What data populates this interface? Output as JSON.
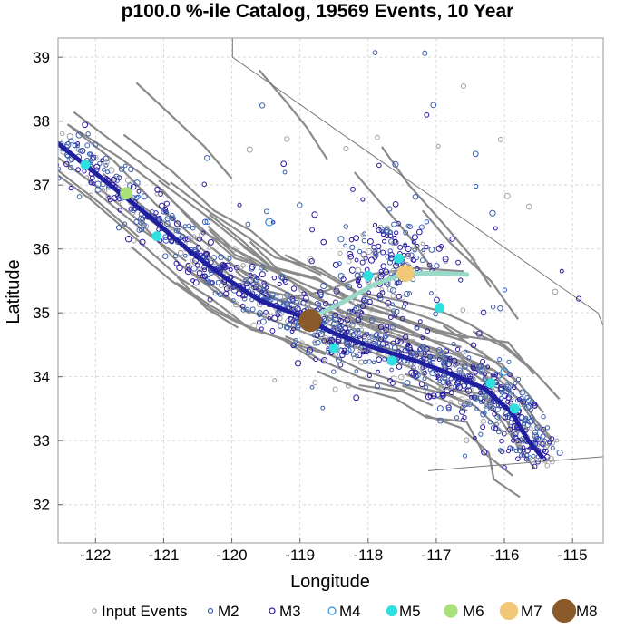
{
  "chart_data": {
    "type": "scatter",
    "title": "p100.0 %-ile Catalog, 19569 Events, 10 Year",
    "xlabel": "Longitude",
    "ylabel": "Latitude",
    "xlim": [
      -122.55,
      -114.55
    ],
    "ylim": [
      31.4,
      39.3
    ],
    "x_ticks": [
      -122,
      -121,
      -120,
      -119,
      -118,
      -117,
      -116,
      -115
    ],
    "y_ticks": [
      32,
      33,
      34,
      35,
      36,
      37,
      38,
      39
    ],
    "x_tick_labels": [
      "-122",
      "-121",
      "-120",
      "-119",
      "-118",
      "-117",
      "-116",
      "-115"
    ],
    "y_tick_labels": [
      "32",
      "33",
      "34",
      "35",
      "36",
      "37",
      "38",
      "39"
    ],
    "grid": true,
    "legend_position": "bottom",
    "legend": [
      {
        "name": "Input Events",
        "color": "#a0a0a0",
        "style": "open"
      },
      {
        "name": "M2",
        "color": "#3a5fb0",
        "style": "open"
      },
      {
        "name": "M3",
        "color": "#2a1aa0",
        "style": "open"
      },
      {
        "name": "M4",
        "color": "#2a8fe0",
        "style": "open"
      },
      {
        "name": "M5",
        "color": "#30e0e0",
        "style": "filled"
      },
      {
        "name": "M6",
        "color": "#a8e07a",
        "style": "filled"
      },
      {
        "name": "M7",
        "color": "#f0c878",
        "style": "filled"
      },
      {
        "name": "M8",
        "color": "#8a5a2a",
        "style": "filled"
      }
    ],
    "notable_events": [
      {
        "mag_class": "M8",
        "x": -118.85,
        "y": 34.88
      },
      {
        "mag_class": "M7",
        "x": -117.45,
        "y": 35.62
      },
      {
        "mag_class": "M6",
        "x": -121.55,
        "y": 36.87
      },
      {
        "mag_class": "M5",
        "x": -122.15,
        "y": 37.32
      },
      {
        "mag_class": "M5",
        "x": -121.1,
        "y": 36.2
      },
      {
        "mag_class": "M5",
        "x": -117.55,
        "y": 35.85
      },
      {
        "mag_class": "M5",
        "x": -118.0,
        "y": 35.58
      },
      {
        "mag_class": "M5",
        "x": -116.95,
        "y": 35.08
      },
      {
        "mag_class": "M5",
        "x": -117.65,
        "y": 34.25
      },
      {
        "mag_class": "M5",
        "x": -118.5,
        "y": 34.45
      },
      {
        "mag_class": "M5",
        "x": -116.2,
        "y": 33.9
      },
      {
        "mag_class": "M5",
        "x": -115.85,
        "y": 33.5
      },
      {
        "mag_class": "M4",
        "x": -119.45,
        "y": 36.42
      },
      {
        "mag_class": "M4",
        "x": -116.0,
        "y": 34.08
      }
    ],
    "rupture_traces": [
      {
        "name": "",
        "color": "#1f1fa0",
        "points": [
          [
            -122.55,
            37.65
          ],
          [
            -121.9,
            37.1
          ],
          [
            -121.2,
            36.5
          ],
          [
            -120.6,
            35.95
          ],
          [
            -120.1,
            35.55
          ],
          [
            -119.6,
            35.2
          ],
          [
            -119.0,
            34.95
          ],
          [
            -118.5,
            34.68
          ],
          [
            -117.9,
            34.45
          ],
          [
            -117.3,
            34.25
          ],
          [
            -116.8,
            34.05
          ],
          [
            -116.3,
            33.82
          ],
          [
            -115.9,
            33.45
          ],
          [
            -115.65,
            33.0
          ],
          [
            -115.45,
            32.75
          ]
        ]
      },
      {
        "name": "",
        "color": "#9ad8c8",
        "points": [
          [
            -118.9,
            34.88
          ],
          [
            -118.4,
            35.15
          ],
          [
            -117.9,
            35.45
          ],
          [
            -117.45,
            35.62
          ],
          [
            -116.9,
            35.62
          ],
          [
            -116.55,
            35.6
          ]
        ]
      }
    ]
  }
}
